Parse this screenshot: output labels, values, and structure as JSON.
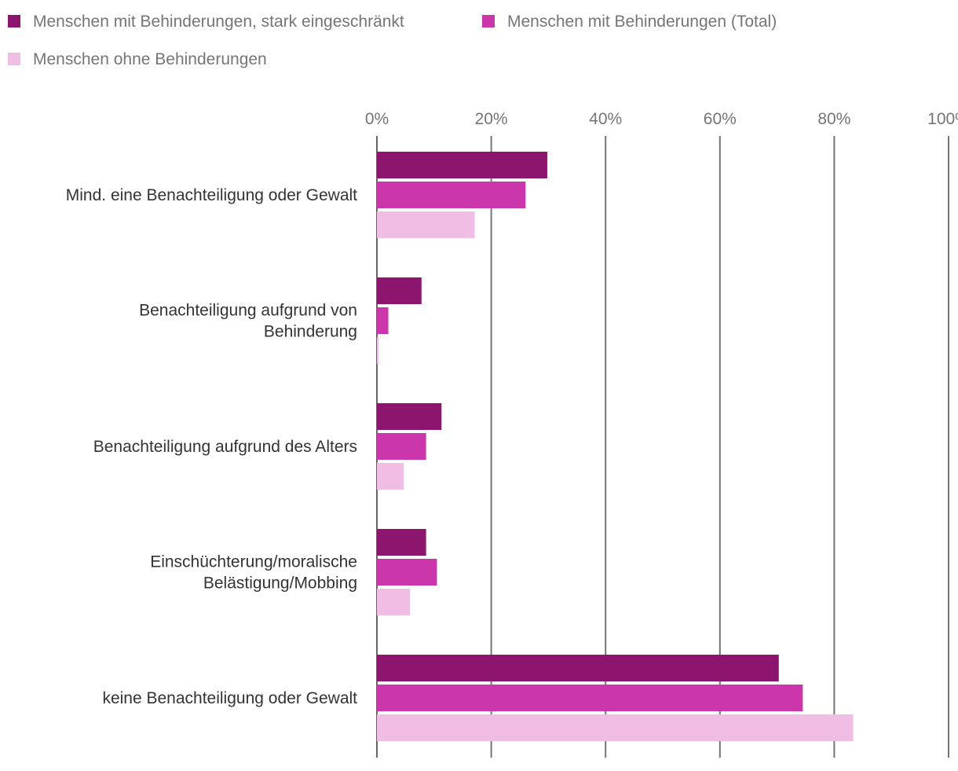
{
  "chart_data": {
    "type": "bar",
    "orientation": "horizontal",
    "title": "",
    "xlabel": "",
    "ylabel": "",
    "xlim": [
      0,
      100
    ],
    "ticks": [
      0,
      20,
      40,
      60,
      80,
      100
    ],
    "tick_suffix": "%",
    "grid": true,
    "legend_position": "top-left",
    "categories": [
      "Mind. eine Benachteiligung oder Gewalt",
      "Benachteiligung aufgrund von Behinderung",
      "Benachteiligung aufgrund des Alters",
      "Einschüchterung/moralische Belästigung/Mobbing",
      "keine Benachteiligung oder Gewalt"
    ],
    "category_lines": [
      [
        "Mind. eine Benachteiligung oder Gewalt"
      ],
      [
        "Benachteiligung aufgrund von",
        "Behinderung"
      ],
      [
        "Benachteiligung aufgrund des Alters"
      ],
      [
        "Einschüchterung/moralische",
        "Belästigung/Mobbing"
      ],
      [
        "keine Benachteiligung oder Gewalt"
      ]
    ],
    "series": [
      {
        "name": "Menschen mit Behinderungen, stark eingeschränkt",
        "color": "#8c156e",
        "values": [
          29.8,
          7.8,
          11.3,
          8.6,
          70.3
        ]
      },
      {
        "name": "Menschen mit Behinderungen (Total)",
        "color": "#cc36ab",
        "values": [
          26.0,
          2.0,
          8.6,
          10.5,
          74.5
        ]
      },
      {
        "name": "Menschen ohne Behinderungen",
        "color": "#f0bde4",
        "values": [
          17.1,
          0.3,
          4.7,
          5.8,
          83.3
        ]
      }
    ]
  }
}
